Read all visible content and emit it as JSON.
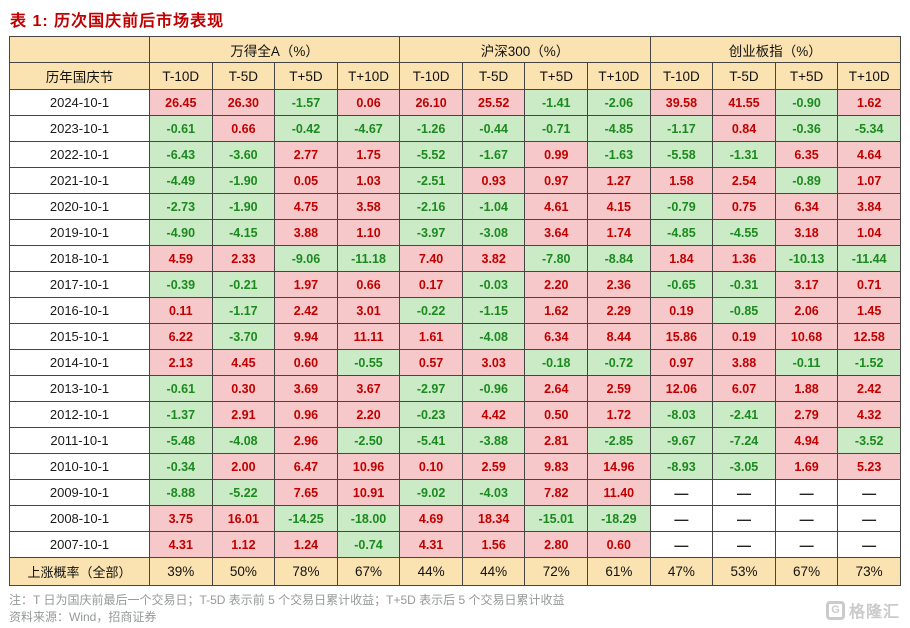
{
  "title": "表 1:  历次国庆前后市场表现",
  "table": {
    "corner_blank": "",
    "corner_label": "历年国庆节",
    "groups": [
      {
        "label": "万得全A（%）"
      },
      {
        "label": "沪深300（%）"
      },
      {
        "label": "创业板指（%）"
      }
    ],
    "sub_headers": [
      "T-10D",
      "T-5D",
      "T+5D",
      "T+10D"
    ],
    "rows": [
      {
        "date": "2024-10-1",
        "values": [
          "26.45",
          "26.30",
          "-1.57",
          "0.06",
          "26.10",
          "25.52",
          "-1.41",
          "-2.06",
          "39.58",
          "41.55",
          "-0.90",
          "1.62"
        ]
      },
      {
        "date": "2023-10-1",
        "values": [
          "-0.61",
          "0.66",
          "-0.42",
          "-4.67",
          "-1.26",
          "-0.44",
          "-0.71",
          "-4.85",
          "-1.17",
          "0.84",
          "-0.36",
          "-5.34"
        ]
      },
      {
        "date": "2022-10-1",
        "values": [
          "-6.43",
          "-3.60",
          "2.77",
          "1.75",
          "-5.52",
          "-1.67",
          "0.99",
          "-1.63",
          "-5.58",
          "-1.31",
          "6.35",
          "4.64"
        ]
      },
      {
        "date": "2021-10-1",
        "values": [
          "-4.49",
          "-1.90",
          "0.05",
          "1.03",
          "-2.51",
          "0.93",
          "0.97",
          "1.27",
          "1.58",
          "2.54",
          "-0.89",
          "1.07"
        ]
      },
      {
        "date": "2020-10-1",
        "values": [
          "-2.73",
          "-1.90",
          "4.75",
          "3.58",
          "-2.16",
          "-1.04",
          "4.61",
          "4.15",
          "-0.79",
          "0.75",
          "6.34",
          "3.84"
        ]
      },
      {
        "date": "2019-10-1",
        "values": [
          "-4.90",
          "-4.15",
          "3.88",
          "1.10",
          "-3.97",
          "-3.08",
          "3.64",
          "1.74",
          "-4.85",
          "-4.55",
          "3.18",
          "1.04"
        ]
      },
      {
        "date": "2018-10-1",
        "values": [
          "4.59",
          "2.33",
          "-9.06",
          "-11.18",
          "7.40",
          "3.82",
          "-7.80",
          "-8.84",
          "1.84",
          "1.36",
          "-10.13",
          "-11.44"
        ]
      },
      {
        "date": "2017-10-1",
        "values": [
          "-0.39",
          "-0.21",
          "1.97",
          "0.66",
          "0.17",
          "-0.03",
          "2.20",
          "2.36",
          "-0.65",
          "-0.31",
          "3.17",
          "0.71"
        ]
      },
      {
        "date": "2016-10-1",
        "values": [
          "0.11",
          "-1.17",
          "2.42",
          "3.01",
          "-0.22",
          "-1.15",
          "1.62",
          "2.29",
          "0.19",
          "-0.85",
          "2.06",
          "1.45"
        ]
      },
      {
        "date": "2015-10-1",
        "values": [
          "6.22",
          "-3.70",
          "9.94",
          "11.11",
          "1.61",
          "-4.08",
          "6.34",
          "8.44",
          "15.86",
          "0.19",
          "10.68",
          "12.58"
        ]
      },
      {
        "date": "2014-10-1",
        "values": [
          "2.13",
          "4.45",
          "0.60",
          "-0.55",
          "0.57",
          "3.03",
          "-0.18",
          "-0.72",
          "0.97",
          "3.88",
          "-0.11",
          "-1.52"
        ]
      },
      {
        "date": "2013-10-1",
        "values": [
          "-0.61",
          "0.30",
          "3.69",
          "3.67",
          "-2.97",
          "-0.96",
          "2.64",
          "2.59",
          "12.06",
          "6.07",
          "1.88",
          "2.42"
        ]
      },
      {
        "date": "2012-10-1",
        "values": [
          "-1.37",
          "2.91",
          "0.96",
          "2.20",
          "-0.23",
          "4.42",
          "0.50",
          "1.72",
          "-8.03",
          "-2.41",
          "2.79",
          "4.32"
        ]
      },
      {
        "date": "2011-10-1",
        "values": [
          "-5.48",
          "-4.08",
          "2.96",
          "-2.50",
          "-5.41",
          "-3.88",
          "2.81",
          "-2.85",
          "-9.67",
          "-7.24",
          "4.94",
          "-3.52"
        ]
      },
      {
        "date": "2010-10-1",
        "values": [
          "-0.34",
          "2.00",
          "6.47",
          "10.96",
          "0.10",
          "2.59",
          "9.83",
          "14.96",
          "-8.93",
          "-3.05",
          "1.69",
          "5.23"
        ]
      },
      {
        "date": "2009-10-1",
        "values": [
          "-8.88",
          "-5.22",
          "7.65",
          "10.91",
          "-9.02",
          "-4.03",
          "7.82",
          "11.40",
          "—",
          "—",
          "—",
          "—"
        ]
      },
      {
        "date": "2008-10-1",
        "values": [
          "3.75",
          "16.01",
          "-14.25",
          "-18.00",
          "4.69",
          "18.34",
          "-15.01",
          "-18.29",
          "—",
          "—",
          "—",
          "—"
        ]
      },
      {
        "date": "2007-10-1",
        "values": [
          "4.31",
          "1.12",
          "1.24",
          "-0.74",
          "4.31",
          "1.56",
          "2.80",
          "0.60",
          "—",
          "—",
          "—",
          "—"
        ]
      }
    ],
    "summary": {
      "label": "上涨概率（全部）",
      "values": [
        "39%",
        "50%",
        "78%",
        "67%",
        "44%",
        "44%",
        "72%",
        "61%",
        "47%",
        "53%",
        "67%",
        "73%"
      ]
    }
  },
  "footnotes": {
    "note": "注：T 日为国庆前最后一个交易日；T-5D 表示前 5 个交易日累计收益；T+5D 表示后 5 个交易日累计收益",
    "source": "资料来源：Wind，招商证券"
  },
  "logo": {
    "icon_letter": "G",
    "text": "格隆汇"
  },
  "colors": {
    "title_red": "#c00000",
    "header_tan": "#fbe3b1",
    "positive_bg": "#f7c8c9",
    "positive_text": "#c00000",
    "negative_bg": "#cbeac6",
    "negative_text": "#1b8a1e",
    "border": "#454545",
    "note_gray": "#959a97"
  }
}
